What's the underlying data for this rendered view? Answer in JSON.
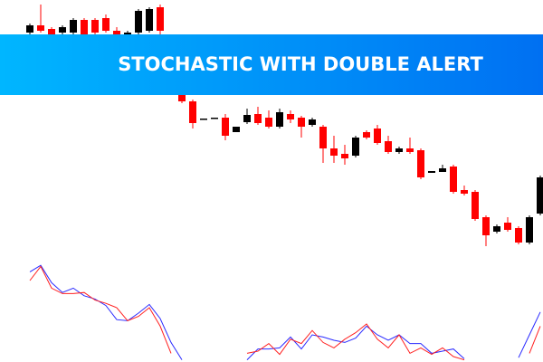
{
  "chart_data": [
    {
      "type": "candlestick",
      "title": "STOCHASTIC WITH DOUBLE ALERT",
      "up_color": "#000000",
      "down_color": "#ff0000",
      "ylim": [
        0,
        400
      ],
      "open": [
        364,
        372,
        368,
        364,
        364,
        378,
        378,
        380,
        366,
        360,
        364,
        366,
        392,
        340,
        300,
        288,
        268,
        269,
        270,
        254,
        265,
        274,
        270,
        260,
        274,
        270,
        262,
        260,
        236,
        230,
        228,
        254,
        258,
        244,
        232,
        236,
        234,
        209,
        210,
        216,
        190,
        188,
        160,
        144,
        154,
        148,
        132,
        164
      ],
      "high": [
        374,
        395,
        370,
        372,
        380,
        380,
        380,
        384,
        370,
        366,
        390,
        392,
        395,
        345,
        305,
        290,
        269,
        270,
        274,
        260,
        280,
        282,
        278,
        280,
        278,
        272,
        270,
        262,
        250,
        240,
        250,
        256,
        262,
        250,
        238,
        248,
        236,
        211,
        218,
        218,
        195,
        190,
        162,
        152,
        160,
        150,
        162,
        206
      ],
      "low": [
        362,
        364,
        360,
        362,
        362,
        360,
        362,
        364,
        360,
        358,
        362,
        364,
        360,
        305,
        286,
        258,
        268,
        269,
        245,
        254,
        263,
        262,
        258,
        258,
        264,
        248,
        260,
        220,
        220,
        218,
        226,
        246,
        240,
        230,
        230,
        230,
        202,
        209,
        210,
        186,
        184,
        156,
        128,
        142,
        144,
        130,
        130,
        162
      ],
      "close": [
        372,
        366,
        362,
        370,
        378,
        362,
        364,
        366,
        362,
        364,
        388,
        390,
        366,
        310,
        288,
        264,
        269,
        270,
        250,
        260,
        273,
        264,
        260,
        276,
        268,
        260,
        268,
        236,
        228,
        225,
        248,
        248,
        242,
        232,
        236,
        232,
        204,
        211,
        214,
        188,
        186,
        158,
        140,
        150,
        146,
        132,
        160,
        204
      ]
    },
    {
      "type": "line",
      "ylim": [
        0,
        100
      ],
      "series": [
        {
          "color": "#2a2aff",
          "values": [
            83,
            89,
            73,
            64,
            68,
            61,
            58,
            52,
            39,
            38,
            45,
            53,
            40,
            18,
            2,
            null,
            null,
            null,
            null,
            null,
            2,
            12,
            12,
            13,
            23,
            12,
            25,
            23,
            20,
            18,
            22,
            33,
            25,
            20,
            25,
            17,
            17,
            8,
            10,
            12,
            3,
            null,
            null,
            null,
            null,
            4,
            25,
            46
          ]
        },
        {
          "color": "#ff2020",
          "values": [
            75,
            88,
            68,
            63,
            63,
            64,
            57,
            54,
            50,
            38,
            42,
            50,
            33,
            8,
            null,
            null,
            null,
            null,
            null,
            null,
            8,
            10,
            17,
            7,
            21,
            17,
            29,
            18,
            13,
            21,
            27,
            35,
            21,
            13,
            25,
            8,
            13,
            7,
            13,
            5,
            2,
            null,
            null,
            null,
            null,
            null,
            8,
            33
          ]
        }
      ]
    }
  ]
}
